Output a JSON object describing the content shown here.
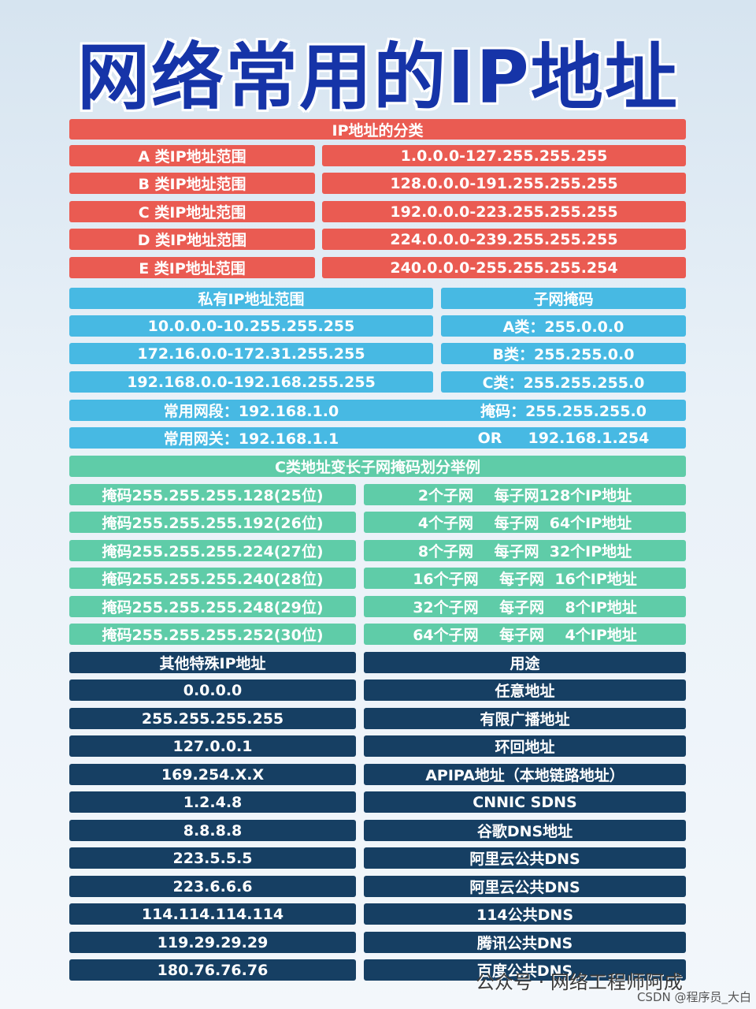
{
  "title": "网络常用的IP地址",
  "classes": {
    "header": "IP地址的分类",
    "rows": [
      {
        "label": "A 类IP地址范围",
        "range": "1.0.0.0-127.255.255.255"
      },
      {
        "label": "B 类IP地址范围",
        "range": "128.0.0.0-191.255.255.255"
      },
      {
        "label": "C 类IP地址范围",
        "range": "192.0.0.0-223.255.255.255"
      },
      {
        "label": "D 类IP地址范围",
        "range": "224.0.0.0-239.255.255.255"
      },
      {
        "label": "E 类IP地址范围",
        "range": "240.0.0.0-255.255.255.254"
      }
    ]
  },
  "private": {
    "header_left": "私有IP地址范围",
    "header_right": "子网掩码",
    "rows": [
      {
        "left": "10.0.0.0-10.255.255.255",
        "right": "A类：255.0.0.0"
      },
      {
        "left": "172.16.0.0-172.31.255.255",
        "right": "B类：255.255.0.0"
      },
      {
        "left": "192.168.0.0-192.168.255.255",
        "right": "C类：255.255.255.0"
      },
      {
        "left": "常用网段：192.168.1.0",
        "right": "掩码：255.255.255.0"
      },
      {
        "left": "常用网关：192.168.1.1",
        "right": "OR     192.168.1.254"
      }
    ]
  },
  "subnet": {
    "header": "C类地址变长子网掩码划分举例",
    "rows": [
      {
        "mask": "掩码255.255.255.128(25位)",
        "desc": "2个子网    每子网128个IP地址"
      },
      {
        "mask": "掩码255.255.255.192(26位)",
        "desc": "4个子网    每子网  64个IP地址"
      },
      {
        "mask": "掩码255.255.255.224(27位)",
        "desc": "8个子网    每子网  32个IP地址"
      },
      {
        "mask": "掩码255.255.255.240(28位)",
        "desc": "16个子网    每子网  16个IP地址"
      },
      {
        "mask": "掩码255.255.255.248(29位)",
        "desc": "32个子网    每子网    8个IP地址"
      },
      {
        "mask": "掩码255.255.255.252(30位)",
        "desc": "64个子网    每子网    4个IP地址"
      }
    ]
  },
  "special": {
    "header_left": "其他特殊IP地址",
    "header_right": "用途",
    "rows": [
      {
        "ip": "0.0.0.0",
        "use": "任意地址"
      },
      {
        "ip": "255.255.255.255",
        "use": "有限广播地址"
      },
      {
        "ip": "127.0.0.1",
        "use": "环回地址"
      },
      {
        "ip": "169.254.X.X",
        "use": "APIPA地址（本地链路地址）"
      },
      {
        "ip": "1.2.4.8",
        "use": "CNNIC SDNS"
      },
      {
        "ip": "8.8.8.8",
        "use": "谷歌DNS地址"
      },
      {
        "ip": "223.5.5.5",
        "use": "阿里云公共DNS"
      },
      {
        "ip": "223.6.6.6",
        "use": "阿里云公共DNS"
      },
      {
        "ip": "114.114.114.114",
        "use": "114公共DNS"
      },
      {
        "ip": "119.29.29.29",
        "use": "腾讯公共DNS"
      },
      {
        "ip": "180.76.76.76",
        "use": "百度公共DNS"
      }
    ]
  },
  "watermark": {
    "account": "公众号 · 网络工程师阿成",
    "csdn": "CSDN @程序员_大白"
  },
  "colors": {
    "title": "#1634a8",
    "red": "#ea5b52",
    "blue": "#47b9e3",
    "green": "#5fcca8",
    "navy": "#163f63"
  }
}
